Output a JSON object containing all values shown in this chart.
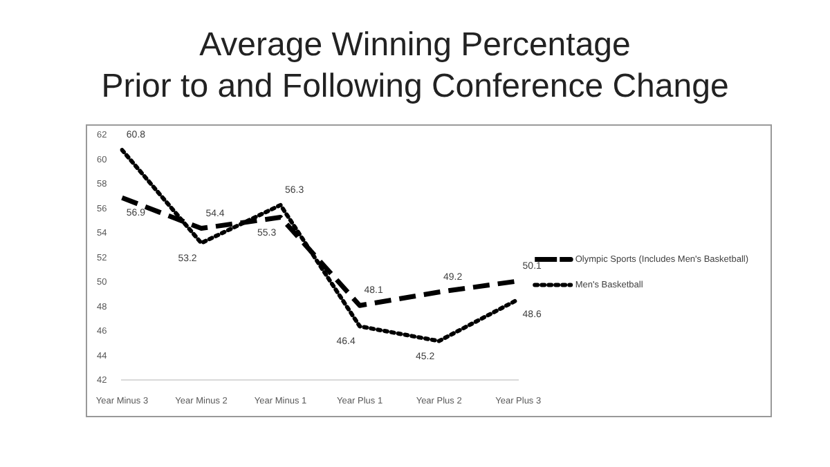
{
  "chart_data": {
    "type": "line",
    "title": "Average Winning Percentage\nPrior to and Following Conference Change",
    "categories": [
      "Year Minus 3",
      "Year Minus 2",
      "Year Minus 1",
      "Year Plus 1",
      "Year Plus 2",
      "Year Plus 3"
    ],
    "series": [
      {
        "name": "Olympic Sports (Includes Men's Basketball)",
        "color": "#000000",
        "line_style": "dashed",
        "values": [
          56.9,
          54.4,
          55.3,
          48.1,
          49.2,
          50.1
        ]
      },
      {
        "name": "Men's Basketball",
        "color": "#000000",
        "line_style": "dotted",
        "values": [
          60.8,
          53.2,
          56.3,
          46.4,
          45.2,
          48.6
        ]
      }
    ],
    "ylim": [
      42,
      62
    ],
    "yticks": [
      42,
      44,
      46,
      48,
      50,
      52,
      54,
      56,
      58,
      60,
      62
    ],
    "grid": false,
    "legend": "right",
    "marker": "none",
    "data_labels": true
  }
}
